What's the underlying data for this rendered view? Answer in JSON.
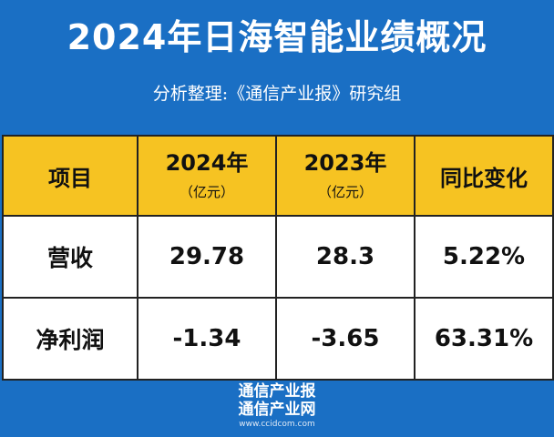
{
  "header": {
    "title": "2024年日海智能业绩概况",
    "subtitle": "分析整理:《通信产业报》研究组"
  },
  "table": {
    "header": {
      "item": "项目",
      "col2024_year": "2024年",
      "col2024_unit": "（亿元）",
      "col2023_year": "2023年",
      "col2023_unit": "（亿元）",
      "change": "同比变化"
    },
    "rows": [
      {
        "label": "营收",
        "v2024": "29.78",
        "v2023": "28.3",
        "change": "5.22%"
      },
      {
        "label": "净利润",
        "v2024": "-1.34",
        "v2023": "-3.65",
        "change": "63.31%"
      }
    ]
  },
  "footer": {
    "brand_line1": "通信产业报",
    "brand_line2": "通信产业网",
    "website": "www.ccidcom.com"
  },
  "colors": {
    "background_blue": "#1a6fc4",
    "header_yellow": "#f6c322"
  }
}
